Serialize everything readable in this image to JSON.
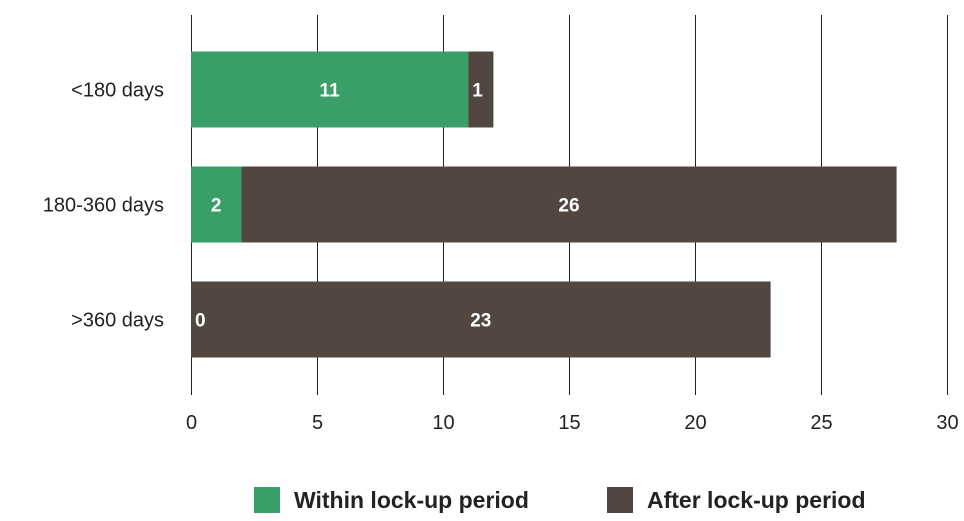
{
  "chart_data": {
    "type": "bar",
    "orientation": "horizontal",
    "stacked": true,
    "categories": [
      "<180 days",
      "180-360 days",
      ">360 days"
    ],
    "series": [
      {
        "name": "Within lock-up period",
        "values": [
          11,
          2,
          0
        ],
        "color": "#3a9e68"
      },
      {
        "name": "After lock-up period",
        "values": [
          1,
          26,
          23
        ],
        "color": "#524640"
      }
    ],
    "xlim": [
      0,
      30
    ],
    "xticks": [
      "0",
      "5",
      "10",
      "15",
      "20",
      "25",
      "30"
    ],
    "grid": true,
    "legend_position": "bottom",
    "title": "",
    "xlabel": "",
    "ylabel": ""
  }
}
